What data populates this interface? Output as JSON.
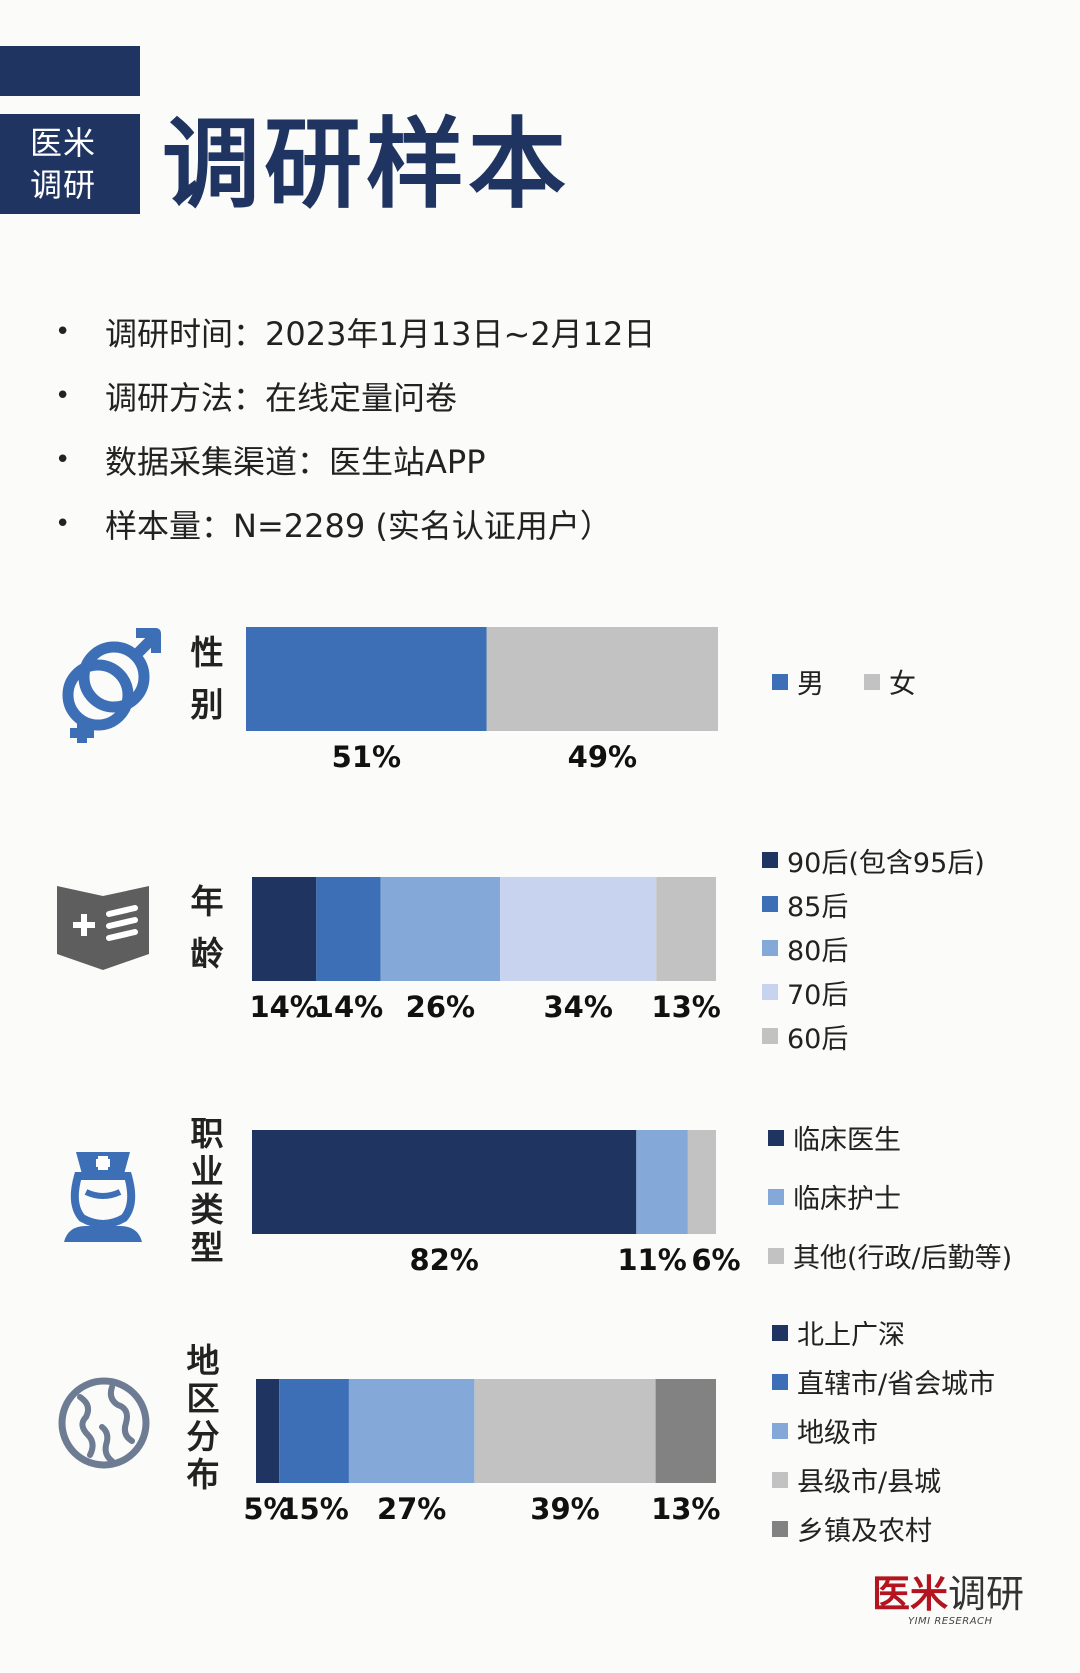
{
  "header": {
    "badge_line1": "医米",
    "badge_line2": "调研",
    "title": "调研样本"
  },
  "info": [
    {
      "bullet": "•",
      "text": "调研时间：2023年1月13日~2月12日"
    },
    {
      "bullet": "•",
      "text": "调研方法：在线定量问卷"
    },
    {
      "bullet": "•",
      "text": "数据采集渠道：医生站APP"
    },
    {
      "bullet": "•",
      "text": "样本量：N=2289 (实名认证用户）"
    }
  ],
  "icons": {
    "gender": "gender-symbols-icon",
    "age": "medical-book-icon",
    "profession": "nurse-icon",
    "region": "globe-icon"
  },
  "logo": {
    "main_red": "医米",
    "main_dark": "调研",
    "sub": "YIMI RESERACH"
  },
  "chart_data": [
    {
      "type": "bar",
      "stacked": true,
      "orientation": "horizontal",
      "label_chars": [
        "性",
        "别"
      ],
      "series": [
        {
          "name": "男",
          "values": [
            51
          ],
          "color": "#3d6fb6"
        },
        {
          "name": "女",
          "values": [
            49
          ],
          "color": "#c2c2c2"
        }
      ],
      "data_labels": [
        "51%",
        "49%"
      ],
      "legend": "right"
    },
    {
      "type": "bar",
      "stacked": true,
      "orientation": "horizontal",
      "label_chars": [
        "年",
        "龄"
      ],
      "series": [
        {
          "name": "90后(包含95后)",
          "values": [
            14
          ],
          "color": "#1f3461"
        },
        {
          "name": "85后",
          "values": [
            14
          ],
          "color": "#3d6fb6"
        },
        {
          "name": "80后",
          "values": [
            26
          ],
          "color": "#84a9d9"
        },
        {
          "name": "70后",
          "values": [
            34
          ],
          "color": "#c8d3ef"
        },
        {
          "name": "60后",
          "values": [
            13
          ],
          "color": "#c2c2c2"
        }
      ],
      "data_labels": [
        "14%",
        "14%",
        "26%",
        "34%",
        "13%"
      ],
      "legend": "right"
    },
    {
      "type": "bar",
      "stacked": true,
      "orientation": "horizontal",
      "label_chars": [
        "职",
        "业",
        "类",
        "型"
      ],
      "series": [
        {
          "name": "临床医生",
          "values": [
            82
          ],
          "color": "#1f3461"
        },
        {
          "name": "临床护士",
          "values": [
            11
          ],
          "color": "#84a9d9"
        },
        {
          "name": "其他(行政/后勤等)",
          "values": [
            6
          ],
          "color": "#c2c2c2"
        }
      ],
      "data_labels": [
        "82%",
        "11%",
        "6%"
      ],
      "legend": "right"
    },
    {
      "type": "bar",
      "stacked": true,
      "orientation": "horizontal",
      "label_chars": [
        "地",
        "区",
        "分",
        "布"
      ],
      "series": [
        {
          "name": "北上广深",
          "values": [
            5
          ],
          "color": "#1f3461"
        },
        {
          "name": "直辖市/省会城市",
          "values": [
            15
          ],
          "color": "#3d6fb6"
        },
        {
          "name": "地级市",
          "values": [
            27
          ],
          "color": "#84a9d9"
        },
        {
          "name": "县级市/县城",
          "values": [
            39
          ],
          "color": "#c2c2c2"
        },
        {
          "name": "乡镇及农村",
          "values": [
            13
          ],
          "color": "#828282"
        }
      ],
      "data_labels": [
        "5%",
        "15%",
        "27%",
        "39%",
        "13%"
      ],
      "legend": "right"
    }
  ]
}
